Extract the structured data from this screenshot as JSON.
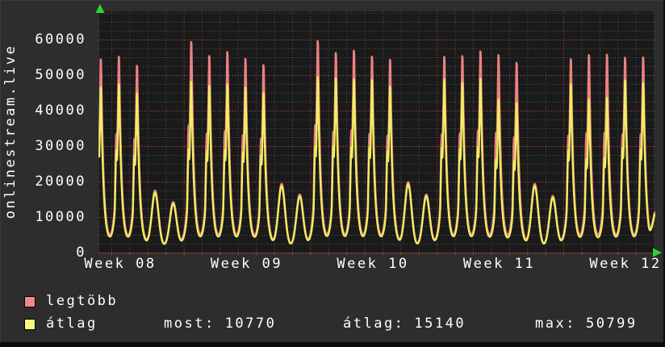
{
  "window": {
    "bg": "#2d2d2d",
    "canvas_bg": "#1a1a1a",
    "bevel_light": "#3a3a3a",
    "bevel_dark": "#0b0b0b"
  },
  "colors": {
    "text": "#ffffff",
    "arrow": "#2fd32f",
    "grid_major": "#a84141",
    "grid_minor": "#4d4d4d",
    "axis_baseline": "#b04545",
    "legtobb_line": "#ee8181",
    "atlag_line": "#efee61"
  },
  "y_axis_title": "onlinestream.live",
  "legend": {
    "items": [
      {
        "label": "legtöbb",
        "color": "#f18888"
      },
      {
        "label": "átlag",
        "color": "#f7f77e"
      }
    ]
  },
  "stats": [
    {
      "label": "most:",
      "value": "10770"
    },
    {
      "label": "átlag:",
      "value": "15140"
    },
    {
      "label": "max:",
      "value": "50799"
    }
  ],
  "chart_data": {
    "type": "line",
    "title": "onlinestream.live",
    "x_axis": {
      "unit": "days",
      "span_days": 30.72,
      "tick_labels": [
        "Week 08",
        "Week 09",
        "Week 10",
        "Week 11",
        "Week 12"
      ],
      "major_grid": "weekly-red",
      "minor_grid": "daily-gray"
    },
    "y_axis": {
      "tick_labels": [
        "0",
        "10000",
        "20000",
        "30000",
        "40000",
        "50000",
        "60000"
      ],
      "ticks": [
        0,
        10000,
        20000,
        30000,
        40000,
        50000,
        60000
      ],
      "minor_step": 2500,
      "range_visible": [
        0,
        68000
      ]
    },
    "grid": true,
    "legend_position": "bottom-left",
    "baseline_value": 1800,
    "weekend_day_indices": [
      3,
      4,
      10,
      11,
      17,
      18,
      24,
      25
    ],
    "series": [
      {
        "name": "legtöbb",
        "color": "#ee8181",
        "current": 11300,
        "daily_peak_values": [
          56000,
          56800,
          54100,
          15600,
          12400,
          61300,
          57000,
          58200,
          56100,
          54300,
          17500,
          14500,
          61500,
          57900,
          58600,
          56800,
          55900,
          18000,
          14500,
          56800,
          57000,
          58400,
          57300,
          55000,
          17500,
          14100,
          56100,
          57300,
          57400,
          56500,
          56600
        ]
      },
      {
        "name": "átlag",
        "color": "#efee61",
        "current": 10770,
        "daily_peak_values": [
          47600,
          48600,
          45900,
          15000,
          11900,
          49300,
          48100,
          48500,
          47500,
          46000,
          16900,
          14000,
          50799,
          50300,
          50000,
          49800,
          47900,
          17400,
          14000,
          50000,
          49000,
          50200,
          44000,
          43000,
          16900,
          13600,
          48600,
          44000,
          44500,
          49700,
          48900
        ]
      }
    ],
    "stats": {
      "most": 10770,
      "atlag": 15140,
      "max": 50799
    }
  }
}
